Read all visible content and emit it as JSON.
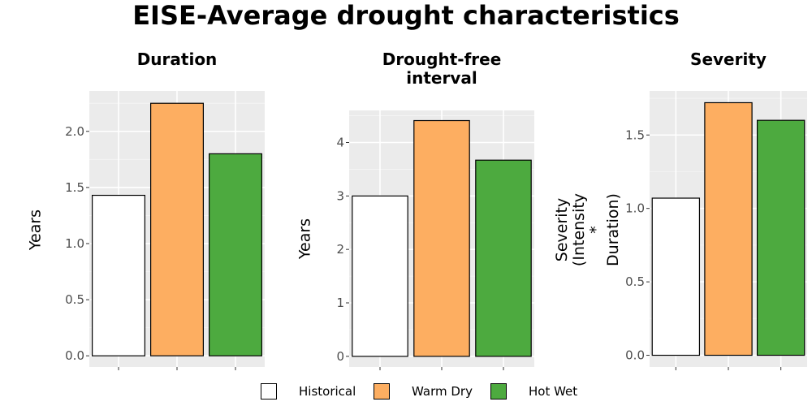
{
  "title": "EISE-Average drought characteristics",
  "legend": [
    {
      "name": "Historical",
      "color": "#ffffff"
    },
    {
      "name": "Warm Dry",
      "color": "#fdae61"
    },
    {
      "name": "Hot Wet",
      "color": "#4daa3f"
    }
  ],
  "chart_data": [
    {
      "type": "bar",
      "title": "Duration",
      "ylabel": "Years",
      "categories": [
        "Historical",
        "Warm Dry",
        "Hot Wet"
      ],
      "values": [
        1.43,
        2.25,
        1.8
      ],
      "ylim": [
        -0.1,
        2.36
      ],
      "yticks": [
        0.0,
        0.5,
        1.0,
        1.5,
        2.0
      ],
      "ytick_labels": [
        "0.0",
        "0.5",
        "1.0",
        "1.5",
        "2.0"
      ],
      "colors": [
        "#ffffff",
        "#fdae61",
        "#4daa3f"
      ],
      "grid": true
    },
    {
      "type": "bar",
      "title": "Drought-free\ninterval",
      "ylabel": "Years",
      "categories": [
        "Historical",
        "Warm Dry",
        "Hot Wet"
      ],
      "values": [
        3.0,
        4.41,
        3.67
      ],
      "ylim": [
        -0.2,
        4.6
      ],
      "yticks": [
        0,
        1,
        2,
        3,
        4
      ],
      "ytick_labels": [
        "0",
        "1",
        "2",
        "3",
        "4"
      ],
      "colors": [
        "#ffffff",
        "#fdae61",
        "#4daa3f"
      ],
      "grid": true
    },
    {
      "type": "bar",
      "title": "Severity",
      "ylabel": "Severity\n(Intensity * Duration)",
      "categories": [
        "Historical",
        "Warm Dry",
        "Hot Wet"
      ],
      "values": [
        1.07,
        1.72,
        1.6
      ],
      "ylim": [
        -0.08,
        1.8
      ],
      "yticks": [
        0.0,
        0.5,
        1.0,
        1.5
      ],
      "ytick_labels": [
        "0.0",
        "0.5",
        "1.0",
        "1.5"
      ],
      "colors": [
        "#ffffff",
        "#fdae61",
        "#4daa3f"
      ],
      "grid": true
    }
  ]
}
